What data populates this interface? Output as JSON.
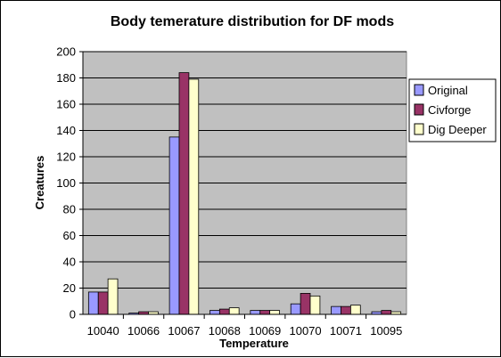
{
  "chart_data": {
    "type": "bar",
    "title": "Body temerature distribution for DF mods",
    "xlabel": "Temperature",
    "ylabel": "Creatures",
    "ylim": [
      0,
      200
    ],
    "yticks": [
      0,
      20,
      40,
      60,
      80,
      100,
      120,
      140,
      160,
      180,
      200
    ],
    "grid": "horizontal",
    "legend_position": "right",
    "plot_background": "#c0c0c0",
    "categories": [
      "10040",
      "10066",
      "10067",
      "10068",
      "10069",
      "10070",
      "10071",
      "10095"
    ],
    "series": [
      {
        "name": "Original",
        "color": "#9999ff",
        "values": [
          17,
          1,
          135,
          3,
          3,
          8,
          6,
          2
        ]
      },
      {
        "name": "Civforge",
        "color": "#993366",
        "values": [
          17,
          2,
          184,
          4,
          3,
          16,
          6,
          3
        ]
      },
      {
        "name": "Dig Deeper",
        "color": "#ffffcc",
        "values": [
          27,
          2,
          179,
          5,
          3,
          14,
          7,
          2
        ]
      }
    ]
  }
}
